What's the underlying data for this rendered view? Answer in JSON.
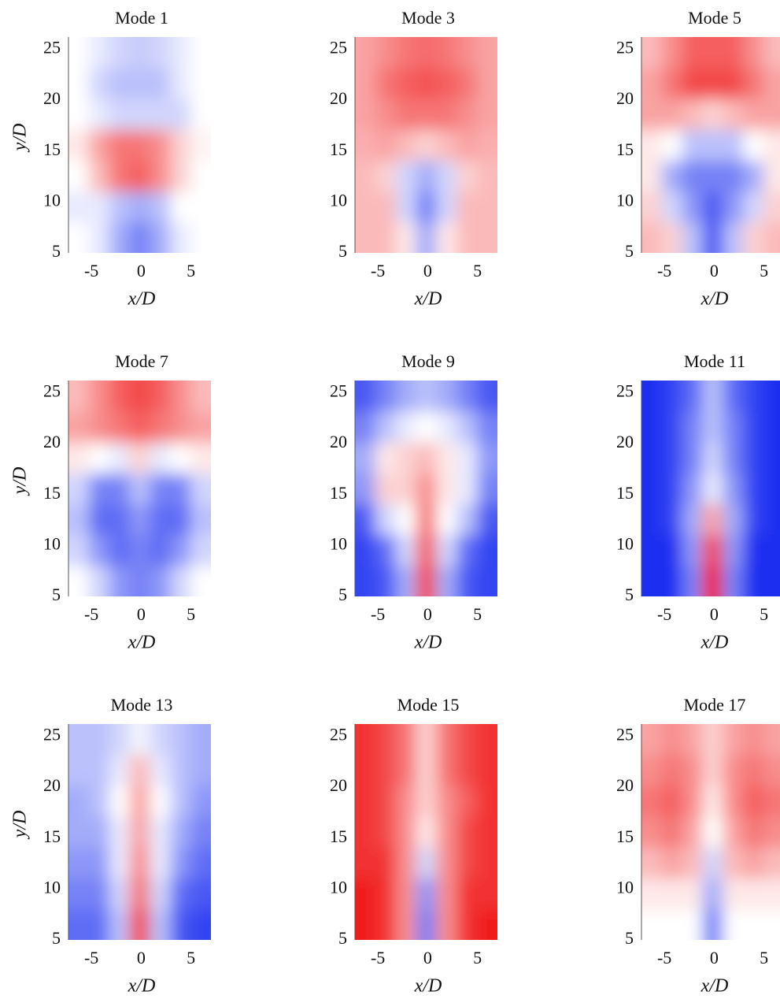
{
  "chart_data": [
    {
      "type": "heatmap",
      "title": "Mode 1",
      "xlabel": "x/D",
      "ylabel": "y/D",
      "xlim": [
        -7.3,
        7
      ],
      "ylim": [
        5,
        26.2
      ],
      "xticks": [
        -5,
        0,
        5
      ],
      "yticks": [
        5,
        10,
        15,
        20,
        25
      ],
      "negative_color": "#1a2ff0",
      "positive_color": "#f01a1a",
      "z": [
        [
          0,
          -0.1,
          -0.4,
          -0.6,
          -0.4,
          -0.1,
          0
        ],
        [
          -0.1,
          -0.1,
          -0.3,
          -0.4,
          -0.3,
          0,
          0
        ],
        [
          0,
          0.3,
          0.6,
          0.7,
          0.5,
          0.2,
          0
        ],
        [
          0.1,
          0.4,
          0.6,
          0.6,
          0.5,
          0.2,
          0.05
        ],
        [
          0,
          -0.1,
          -0.2,
          -0.2,
          -0.2,
          -0.2,
          0
        ],
        [
          0,
          -0.2,
          -0.3,
          -0.3,
          -0.3,
          -0.1,
          0
        ],
        [
          0,
          -0.1,
          -0.2,
          -0.25,
          -0.2,
          -0.1,
          0
        ]
      ]
    },
    {
      "type": "heatmap",
      "title": "Mode 3",
      "xlabel": "x/D",
      "xlim": [
        -7.3,
        7
      ],
      "ylim": [
        5,
        26.2
      ],
      "xticks": [
        -5,
        0,
        5
      ],
      "yticks": [
        5,
        10,
        15,
        20,
        25
      ],
      "negative_color": "#1a2ff0",
      "positive_color": "#f01a1a",
      "z": [
        [
          0.3,
          0.3,
          0.1,
          -0.4,
          0.1,
          0.3,
          0.3
        ],
        [
          0.3,
          0.3,
          -0.2,
          -0.6,
          -0.2,
          0.3,
          0.3
        ],
        [
          0.3,
          0.2,
          -0.2,
          -0.4,
          -0.2,
          0.2,
          0.3
        ],
        [
          0.35,
          0.4,
          0.3,
          0.2,
          0.3,
          0.4,
          0.35
        ],
        [
          0.4,
          0.5,
          0.6,
          0.6,
          0.6,
          0.5,
          0.4
        ],
        [
          0.4,
          0.6,
          0.7,
          0.75,
          0.7,
          0.6,
          0.4
        ],
        [
          0.4,
          0.5,
          0.6,
          0.65,
          0.6,
          0.5,
          0.4
        ]
      ]
    },
    {
      "type": "heatmap",
      "title": "Mode 5",
      "xlabel": "x/D",
      "xlim": [
        -7.3,
        7
      ],
      "ylim": [
        5,
        26.2
      ],
      "xticks": [
        -5,
        0,
        5
      ],
      "yticks": [
        5,
        10,
        15,
        20,
        25
      ],
      "negative_color": "#1a2ff0",
      "positive_color": "#f01a1a",
      "z": [
        [
          0.3,
          0.2,
          -0.3,
          -0.8,
          -0.3,
          0.2,
          0.3
        ],
        [
          0.2,
          -0.2,
          -0.5,
          -0.8,
          -0.5,
          -0.2,
          0.2
        ],
        [
          0.1,
          -0.4,
          -0.6,
          -0.6,
          -0.6,
          -0.4,
          0.1
        ],
        [
          0.1,
          0,
          -0.3,
          -0.3,
          -0.3,
          0,
          0.1
        ],
        [
          0.4,
          0.4,
          0.3,
          0.2,
          0.3,
          0.4,
          0.4
        ],
        [
          0.4,
          0.6,
          0.8,
          0.8,
          0.8,
          0.6,
          0.4
        ],
        [
          0.3,
          0.5,
          0.7,
          0.7,
          0.7,
          0.5,
          0.3
        ]
      ]
    },
    {
      "type": "heatmap",
      "title": "Mode 7",
      "xlabel": "x/D",
      "ylabel": "y/D",
      "xlim": [
        -7.3,
        7
      ],
      "ylim": [
        5,
        26.2
      ],
      "xticks": [
        -5,
        0,
        5
      ],
      "yticks": [
        5,
        10,
        15,
        20,
        25
      ],
      "negative_color": "#1a2ff0",
      "positive_color": "#f01a1a",
      "z": [
        [
          0,
          -0.2,
          -0.5,
          -0.6,
          -0.5,
          -0.2,
          0
        ],
        [
          -0.2,
          -0.5,
          -0.7,
          -0.6,
          -0.7,
          -0.5,
          -0.2
        ],
        [
          -0.3,
          -0.7,
          -0.7,
          -0.5,
          -0.7,
          -0.7,
          -0.3
        ],
        [
          -0.2,
          -0.6,
          -0.6,
          -0.3,
          -0.6,
          -0.6,
          -0.2
        ],
        [
          0.1,
          0,
          -0.1,
          0.2,
          -0.1,
          0,
          0.1
        ],
        [
          0.4,
          0.5,
          0.6,
          0.7,
          0.6,
          0.5,
          0.4
        ],
        [
          0.3,
          0.5,
          0.7,
          0.8,
          0.7,
          0.5,
          0.3
        ]
      ]
    },
    {
      "type": "heatmap",
      "title": "Mode 9",
      "xlabel": "x/D",
      "xlim": [
        -7.3,
        7
      ],
      "ylim": [
        5,
        26.2
      ],
      "xticks": [
        -5,
        0,
        5
      ],
      "yticks": [
        5,
        10,
        15,
        20,
        25
      ],
      "negative_color": "#1a2ff0",
      "positive_color": "#f01a1a",
      "z": [
        [
          -0.9,
          -0.8,
          -0.4,
          0.8,
          -0.4,
          -0.8,
          -0.9
        ],
        [
          -0.9,
          -0.7,
          -0.2,
          0.7,
          -0.2,
          -0.7,
          -0.9
        ],
        [
          -0.8,
          -0.2,
          0,
          0.6,
          0,
          -0.3,
          -0.8
        ],
        [
          -0.5,
          0.2,
          0.2,
          0.5,
          0.1,
          -0.1,
          -0.6
        ],
        [
          -0.4,
          0.1,
          0.2,
          0.3,
          0.1,
          -0.1,
          -0.5
        ],
        [
          -0.6,
          -0.3,
          -0.1,
          0,
          -0.1,
          -0.3,
          -0.6
        ],
        [
          -0.8,
          -0.6,
          -0.4,
          -0.3,
          -0.4,
          -0.6,
          -0.8
        ]
      ]
    },
    {
      "type": "heatmap",
      "title": "Mode 11",
      "xlabel": "x/D",
      "xlim": [
        -7.3,
        7
      ],
      "ylim": [
        5,
        26.2
      ],
      "xticks": [
        -5,
        0,
        5
      ],
      "yticks": [
        5,
        10,
        15,
        20,
        25
      ],
      "negative_color": "#1a2ff0",
      "positive_color": "#f01a1a",
      "z": [
        [
          -1,
          -1,
          -0.6,
          1,
          -0.6,
          -1,
          -1
        ],
        [
          -1,
          -1,
          -0.5,
          0.8,
          -0.5,
          -1,
          -1
        ],
        [
          -1,
          -0.9,
          -0.4,
          0.4,
          -0.4,
          -0.9,
          -1
        ],
        [
          -1,
          -0.9,
          -0.5,
          -0.1,
          -0.5,
          -0.9,
          -1
        ],
        [
          -1,
          -0.9,
          -0.6,
          -0.2,
          -0.6,
          -0.9,
          -1
        ],
        [
          -1,
          -0.9,
          -0.6,
          -0.3,
          -0.6,
          -0.9,
          -1
        ],
        [
          -1,
          -0.9,
          -0.7,
          -0.3,
          -0.7,
          -0.9,
          -1
        ]
      ]
    },
    {
      "type": "heatmap",
      "title": "Mode 13",
      "xlabel": "x/D",
      "ylabel": "y/D",
      "xlim": [
        -7.3,
        7
      ],
      "ylim": [
        5,
        26.2
      ],
      "xticks": [
        -5,
        0,
        5
      ],
      "yticks": [
        5,
        10,
        15,
        20,
        25
      ],
      "negative_color": "#1a2ff0",
      "positive_color": "#f01a1a",
      "z": [
        [
          -0.7,
          -0.7,
          -0.3,
          0.8,
          -0.3,
          -0.8,
          -0.9
        ],
        [
          -0.6,
          -0.6,
          -0.2,
          0.6,
          -0.2,
          -0.7,
          -0.8
        ],
        [
          -0.5,
          -0.5,
          -0.1,
          0.5,
          -0.1,
          -0.5,
          -0.7
        ],
        [
          -0.4,
          -0.4,
          -0.1,
          0.4,
          -0.1,
          -0.4,
          -0.6
        ],
        [
          -0.4,
          -0.3,
          0,
          0.4,
          0,
          -0.3,
          -0.5
        ],
        [
          -0.3,
          -0.3,
          -0.1,
          0.3,
          -0.1,
          -0.3,
          -0.4
        ],
        [
          -0.3,
          -0.3,
          -0.2,
          -0.05,
          -0.2,
          -0.3,
          -0.4
        ]
      ]
    },
    {
      "type": "heatmap",
      "title": "Mode 15",
      "xlabel": "x/D",
      "xlim": [
        -7.3,
        7
      ],
      "ylim": [
        5,
        26.2
      ],
      "xticks": [
        -5,
        0,
        5
      ],
      "yticks": [
        5,
        10,
        15,
        20,
        25
      ],
      "negative_color": "#1a2ff0",
      "positive_color": "#f01a1a",
      "z": [
        [
          1,
          0.9,
          0.5,
          -0.6,
          0.5,
          0.9,
          1
        ],
        [
          1,
          0.9,
          0.5,
          -0.5,
          0.5,
          0.9,
          0.9
        ],
        [
          0.9,
          0.9,
          0.5,
          -0.2,
          0.5,
          0.8,
          0.9
        ],
        [
          0.9,
          0.8,
          0.5,
          0.1,
          0.5,
          0.8,
          0.9
        ],
        [
          0.9,
          0.8,
          0.5,
          0.2,
          0.5,
          0.7,
          0.9
        ],
        [
          0.9,
          0.8,
          0.6,
          0.2,
          0.6,
          0.8,
          0.9
        ],
        [
          0.9,
          0.8,
          0.6,
          0.2,
          0.6,
          0.8,
          0.9
        ]
      ]
    },
    {
      "type": "heatmap",
      "title": "Mode 17",
      "xlabel": "x/D",
      "xlim": [
        -7.3,
        7
      ],
      "ylim": [
        5,
        26.2
      ],
      "xticks": [
        -5,
        0,
        5
      ],
      "yticks": [
        5,
        10,
        15,
        20,
        25
      ],
      "negative_color": "#1a2ff0",
      "positive_color": "#f01a1a",
      "z": [
        [
          0,
          0,
          0,
          -0.6,
          0,
          0,
          0
        ],
        [
          0.1,
          0.1,
          0.1,
          -0.4,
          0.1,
          0.1,
          0.1
        ],
        [
          0.3,
          0.4,
          0.3,
          -0.2,
          0.3,
          0.4,
          0.3
        ],
        [
          0.5,
          0.6,
          0.4,
          0,
          0.4,
          0.6,
          0.5
        ],
        [
          0.6,
          0.7,
          0.5,
          0.1,
          0.5,
          0.7,
          0.6
        ],
        [
          0.5,
          0.6,
          0.5,
          0.2,
          0.5,
          0.6,
          0.5
        ],
        [
          0.4,
          0.5,
          0.4,
          0.2,
          0.4,
          0.5,
          0.4
        ]
      ]
    }
  ]
}
